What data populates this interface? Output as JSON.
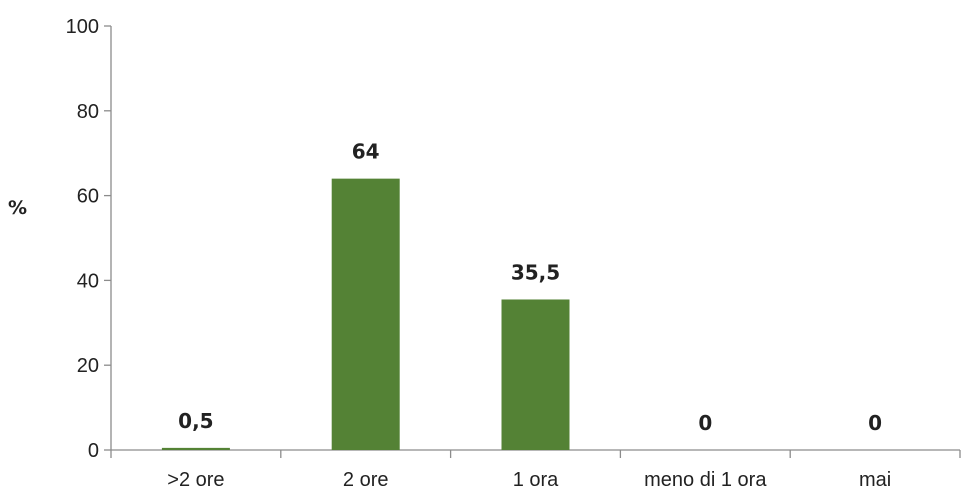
{
  "chart_data": {
    "type": "bar",
    "categories": [
      ">2 ore",
      "2 ore",
      "1 ora",
      "meno di 1 ora",
      "mai"
    ],
    "values": [
      0.5,
      64,
      35.5,
      0,
      0
    ],
    "data_labels": [
      "0,5",
      "64",
      "35,5",
      "0",
      "0"
    ],
    "yticks": [
      "0",
      "20",
      "40",
      "60",
      "80",
      "100"
    ],
    "ylabel": "%",
    "ylim": [
      0,
      100
    ],
    "grid": false,
    "bar_color": "#548235"
  }
}
